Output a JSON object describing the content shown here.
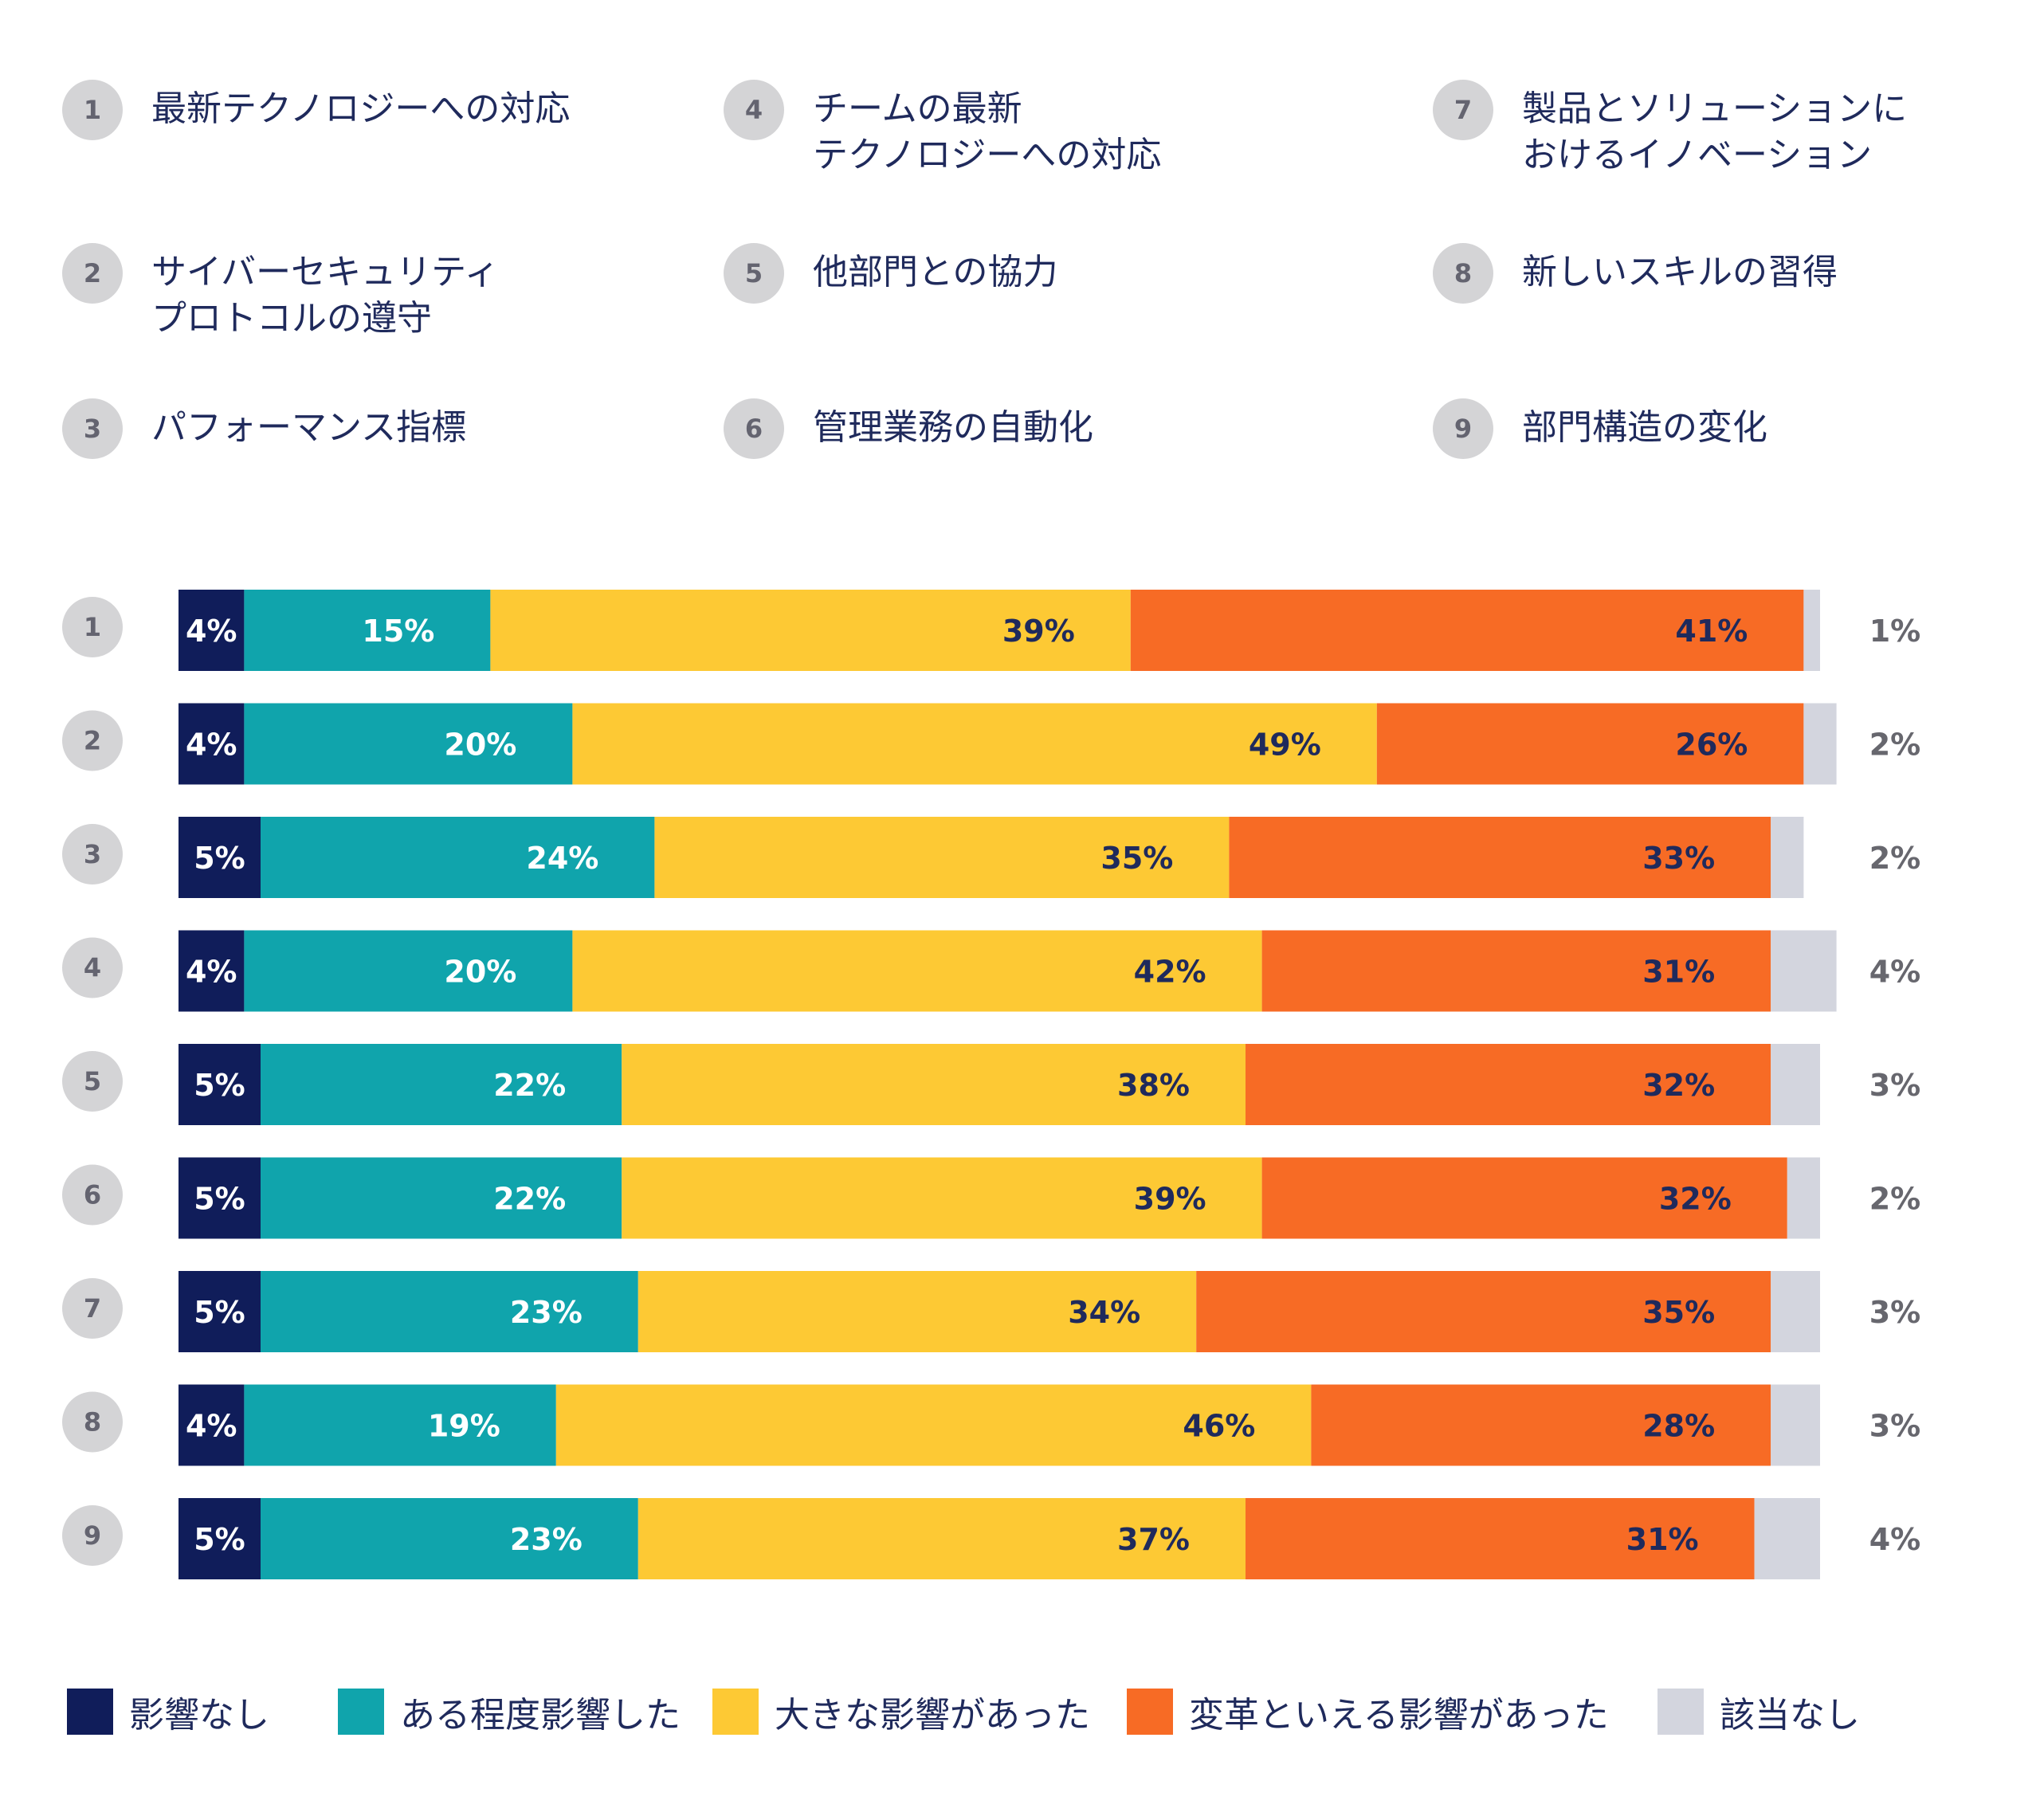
{
  "key": [
    {
      "num": "1",
      "label": "最新テクノロジーへの対応"
    },
    {
      "num": "2",
      "label": "サイバーセキュリティ\nプロトコルの遵守"
    },
    {
      "num": "3",
      "label": "パフォーマンス指標"
    },
    {
      "num": "4",
      "label": "チームの最新\nテクノロジーへの対応"
    },
    {
      "num": "5",
      "label": "他部門との協力"
    },
    {
      "num": "6",
      "label": "管理業務の自動化"
    },
    {
      "num": "7",
      "label": "製品とソリューションに\nおけるイノベーション"
    },
    {
      "num": "8",
      "label": "新しいスキルの習得"
    },
    {
      "num": "9",
      "label": "部門構造の変化"
    }
  ],
  "colors": {
    "none": "#101d5a",
    "some": "#10a4ac",
    "major": "#fdc934",
    "transformative": "#f76b25",
    "na": "#d3d5de",
    "dark_text": "#1f2a5c",
    "white_text": "#ffffff",
    "outside_text": "#67676e"
  },
  "chart_data": {
    "type": "bar",
    "orientation": "horizontal",
    "stacked": true,
    "categories": [
      "1",
      "2",
      "3",
      "4",
      "5",
      "6",
      "7",
      "8",
      "9"
    ],
    "series": [
      {
        "name": "影響なし",
        "values": [
          4,
          4,
          5,
          4,
          5,
          5,
          5,
          4,
          5
        ]
      },
      {
        "name": "ある程度影響した",
        "values": [
          15,
          20,
          24,
          20,
          22,
          22,
          23,
          19,
          23
        ]
      },
      {
        "name": "大きな影響があった",
        "values": [
          39,
          49,
          35,
          42,
          38,
          39,
          34,
          46,
          37
        ]
      },
      {
        "name": "変革といえる影響があった",
        "values": [
          41,
          26,
          33,
          31,
          32,
          32,
          35,
          28,
          31
        ]
      },
      {
        "name": "該当なし",
        "values": [
          1,
          2,
          2,
          4,
          3,
          2,
          3,
          3,
          4
        ]
      }
    ],
    "unit": "%",
    "legend_position": "bottom",
    "grid": false
  }
}
